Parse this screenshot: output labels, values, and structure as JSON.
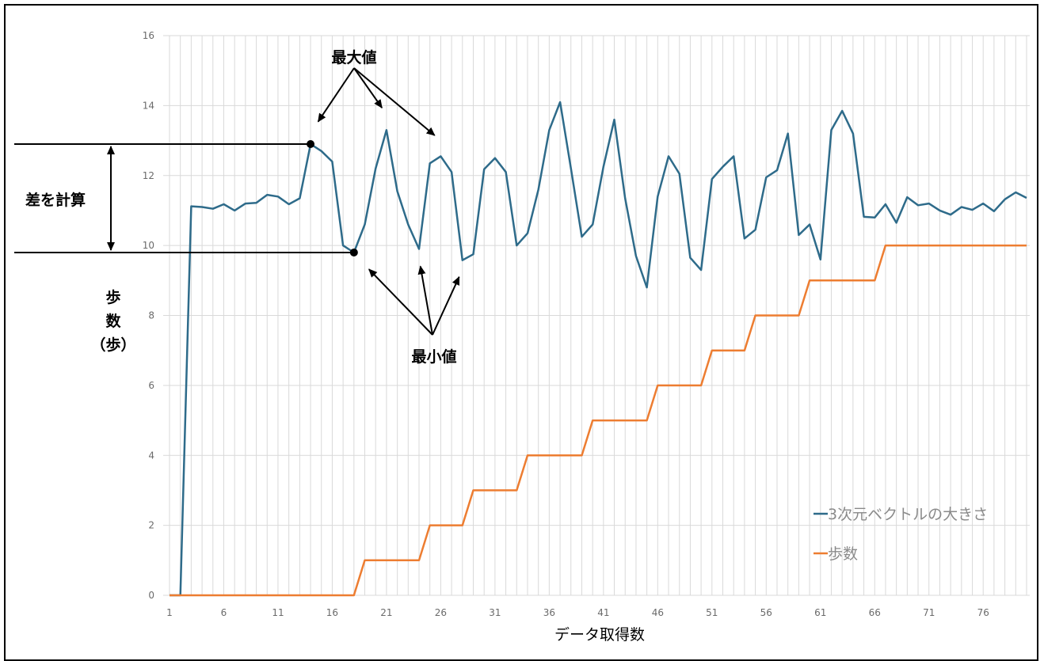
{
  "chart_data": {
    "type": "line",
    "xlabel": "データ取得数",
    "ylabel_chars": [
      "歩",
      "数",
      "（歩）"
    ],
    "ylim": [
      0,
      16
    ],
    "yticks": [
      0,
      2,
      4,
      6,
      8,
      10,
      12,
      14,
      16
    ],
    "xticks": [
      1,
      6,
      11,
      16,
      21,
      26,
      31,
      36,
      41,
      46,
      51,
      56,
      61,
      66,
      71,
      76
    ],
    "x_range": [
      1,
      80
    ],
    "grid": true,
    "legend_position": "bottom-right",
    "series": [
      {
        "name": "3次元ベクトルの大きさ",
        "color": "#2e6b8a",
        "values": [
          0,
          0,
          11.12,
          11.1,
          11.05,
          11.18,
          11.0,
          11.2,
          11.22,
          11.45,
          11.4,
          11.18,
          11.35,
          12.9,
          12.7,
          12.4,
          10.0,
          9.8,
          10.6,
          12.2,
          13.3,
          11.55,
          10.6,
          9.9,
          12.35,
          12.55,
          12.1,
          9.58,
          9.75,
          12.18,
          12.5,
          12.1,
          10.0,
          10.35,
          11.6,
          13.3,
          14.1,
          12.2,
          10.25,
          10.6,
          12.25,
          13.6,
          11.35,
          9.7,
          8.8,
          11.4,
          12.55,
          12.05,
          9.65,
          9.3,
          11.9,
          12.25,
          12.55,
          10.2,
          10.45,
          11.95,
          12.15,
          13.2,
          10.3,
          10.6,
          9.6,
          13.3,
          13.85,
          13.2,
          10.82,
          10.8,
          11.18,
          10.65,
          11.38,
          11.15,
          11.2,
          11.0,
          10.88,
          11.1,
          11.02,
          11.2,
          10.98,
          11.32,
          11.52,
          11.36
        ]
      },
      {
        "name": "歩数",
        "color": "#ed7d31",
        "values": [
          0,
          0,
          0,
          0,
          0,
          0,
          0,
          0,
          0,
          0,
          0,
          0,
          0,
          0,
          0,
          0,
          0,
          0,
          1,
          1,
          1,
          1,
          1,
          1,
          2,
          2,
          2,
          2,
          3,
          3,
          3,
          3,
          3,
          4,
          4,
          4,
          4,
          4,
          4,
          5,
          5,
          5,
          5,
          5,
          5,
          6,
          6,
          6,
          6,
          6,
          7,
          7,
          7,
          7,
          8,
          8,
          8,
          8,
          8,
          9,
          9,
          9,
          9,
          9,
          9,
          9,
          10,
          10,
          10,
          10,
          10,
          10,
          10,
          10,
          10,
          10,
          10,
          10,
          10,
          10
        ]
      }
    ]
  },
  "annotations": {
    "max_label": "最大値",
    "min_label": "最小値",
    "diff_label": "差を計算",
    "max_point": {
      "x": 14,
      "y": 12.9
    },
    "min_point": {
      "x": 18,
      "y": 9.8
    },
    "max_arrow_targets": [
      {
        "x": 14,
        "y": 12.9
      },
      {
        "x": 21,
        "y": 13.3
      },
      {
        "x": 26,
        "y": 12.55
      }
    ],
    "min_arrow_targets": [
      {
        "x": 18,
        "y": 9.8
      },
      {
        "x": 24,
        "y": 9.9
      },
      {
        "x": 28,
        "y": 9.58
      }
    ]
  }
}
